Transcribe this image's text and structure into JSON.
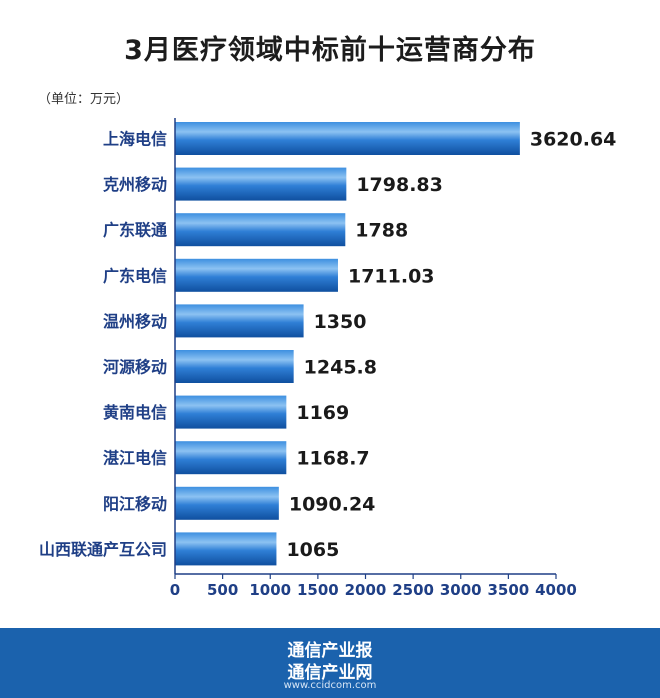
{
  "chart_data": {
    "type": "bar",
    "orientation": "horizontal",
    "title": "3月医疗领域中标前十运营商分布",
    "unit_note": "（单位：万元）",
    "categories": [
      "上海电信",
      "克州移动",
      "广东联通",
      "广东电信",
      "温州移动",
      "河源移动",
      "黄南电信",
      "湛江电信",
      "阳江移动",
      "山西联通产互公司"
    ],
    "values": [
      3620.64,
      1798.83,
      1788,
      1711.03,
      1350,
      1245.8,
      1169,
      1168.7,
      1090.24,
      1065
    ],
    "value_labels": [
      "3620.64",
      "1798.83",
      "1788",
      "1711.03",
      "1350",
      "1245.8",
      "1169",
      "1168.7",
      "1090.24",
      "1065"
    ],
    "xlim": [
      0,
      4000
    ],
    "xticks": [
      "0",
      "500",
      "1000",
      "1500",
      "2000",
      "2500",
      "3000",
      "3500",
      "4000"
    ],
    "grid": false,
    "legend": "none",
    "bar_color": "#1f6cc4",
    "bar_highlight": "#7fb8ee",
    "axis_label_color": "#1f3f86"
  },
  "footer": {
    "line1": "通信产业报",
    "line2": "通信产业网",
    "url": "www.ccidcom.com",
    "background": "#1b62ad"
  }
}
